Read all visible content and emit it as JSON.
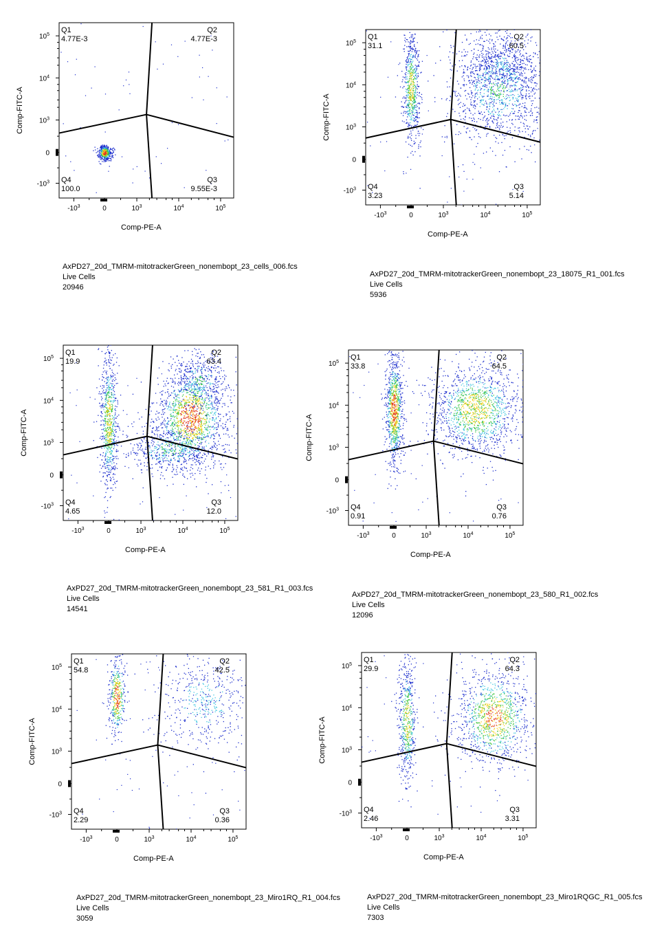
{
  "colors": {
    "density_low": "#1a2ccc",
    "density_mid": "#3fc6e0",
    "density_midhigh": "#3ec43f",
    "density_high": "#f5d21c",
    "density_peak": "#e2341d",
    "gate": "#000000"
  },
  "chart_data": [
    {
      "type": "scatter",
      "xlabel": "Comp-PE-A",
      "ylabel": "Comp-FITC-A",
      "x_ticks": [
        "-10³",
        "0",
        "10³",
        "10⁴",
        "10⁵"
      ],
      "y_ticks": [
        "-10³",
        "0",
        "10³",
        "10⁴",
        "10⁵"
      ],
      "quadrants": {
        "Q1": "4.77E-3",
        "Q2": "4.77E-3",
        "Q3": "9.55E-3",
        "Q4": "100.0"
      },
      "quadrant_names": {
        "q1": "Q1",
        "q2": "Q2",
        "q3": "Q3",
        "q4": "Q4"
      },
      "gate_center": [
        1700,
        1350
      ],
      "file": "AxPD27_20d_TMRM-mitotrackerGreen_nonembopt_23_cells_006.fcs",
      "population": "Live Cells",
      "count": "20946",
      "clusters": [
        {
          "x": 0,
          "y": 0,
          "sx": 0.02,
          "sy": 0.022,
          "n": 420,
          "d": 1.0
        }
      ]
    },
    {
      "type": "scatter",
      "xlabel": "Comp-PE-A",
      "ylabel": "Comp-FITC-A",
      "x_ticks": [
        "-10³",
        "0",
        "10³",
        "10⁴",
        "10⁵"
      ],
      "y_ticks": [
        "-10³",
        "0",
        "10³",
        "10⁴",
        "10⁵"
      ],
      "quadrants": {
        "Q1": "31.1",
        "Q2": "60.5",
        "Q3": "5.14",
        "Q4": "3.23"
      },
      "quadrant_names": {
        "q1": "Q1",
        "q2": "Q2",
        "q3": "Q3",
        "q4": "Q4"
      },
      "gate_center": [
        1500,
        1500
      ],
      "file": "AxPD27_20d_TMRM-mitotrackerGreen_nonembopt_23_18075_R1_001.fcs",
      "population": "Live Cells",
      "count": "5936",
      "clusters": [
        {
          "x": 0,
          "y": 8000,
          "sx": 0.025,
          "sy": 0.16,
          "n": 650,
          "d": 0.75
        },
        {
          "x": 20000,
          "y": 8000,
          "sx": 0.14,
          "sy": 0.16,
          "n": 1300,
          "d": 0.45
        },
        {
          "x": 25000,
          "y": 30000,
          "sx": 0.1,
          "sy": 0.08,
          "n": 400,
          "d": 0.3
        }
      ]
    },
    {
      "type": "scatter",
      "xlabel": "Comp-PE-A",
      "ylabel": "Comp-FITC-A",
      "x_ticks": [
        "-10³",
        "0",
        "10³",
        "10⁴",
        "10⁵"
      ],
      "y_ticks": [
        "-10³",
        "0",
        "10³",
        "10⁴",
        "10⁵"
      ],
      "quadrants": {
        "Q1": "19.9",
        "Q2": "63.4",
        "Q3": "12.0",
        "Q4": "4.65"
      },
      "quadrant_names": {
        "q1": "Q1",
        "q2": "Q2",
        "q3": "Q3",
        "q4": "Q4"
      },
      "gate_center": [
        1400,
        1400
      ],
      "file": "AxPD27_20d_TMRM-mitotrackerGreen_nonembopt_23_581_R1_003.fcs",
      "population": "Live Cells",
      "count": "14541",
      "clusters": [
        {
          "x": 0,
          "y": 3000,
          "sx": 0.025,
          "sy": 0.2,
          "n": 750,
          "d": 0.8
        },
        {
          "x": 15000,
          "y": 4000,
          "sx": 0.1,
          "sy": 0.14,
          "n": 1500,
          "d": 1.0
        },
        {
          "x": 5000,
          "y": 800,
          "sx": 0.13,
          "sy": 0.07,
          "n": 500,
          "d": 0.5
        },
        {
          "x": 25000,
          "y": 30000,
          "sx": 0.08,
          "sy": 0.08,
          "n": 350,
          "d": 0.45
        }
      ]
    },
    {
      "type": "scatter",
      "xlabel": "Comp-PE-A",
      "ylabel": "Comp-FITC-A",
      "x_ticks": [
        "-10³",
        "0",
        "10³",
        "10⁴",
        "10⁵"
      ],
      "y_ticks": [
        "-10³",
        "0",
        "10³",
        "10⁴",
        "10⁵"
      ],
      "quadrants": {
        "Q1": "33.8",
        "Q2": "64.5",
        "Q3": "0.76",
        "Q4": "0.91"
      },
      "quadrant_names": {
        "q1": "Q1",
        "q2": "Q2",
        "q3": "Q3",
        "q4": "Q4"
      },
      "gate_center": [
        1500,
        1400
      ],
      "file": "AxPD27_20d_TMRM-mitotrackerGreen_nonembopt_23_580_R1_002.fcs",
      "population": "Live Cells",
      "count": "12096",
      "clusters": [
        {
          "x": 0,
          "y": 8000,
          "sx": 0.025,
          "sy": 0.16,
          "n": 900,
          "d": 1.0
        },
        {
          "x": 15000,
          "y": 8000,
          "sx": 0.13,
          "sy": 0.13,
          "n": 1400,
          "d": 0.8
        }
      ]
    },
    {
      "type": "scatter",
      "xlabel": "Comp-PE-A",
      "ylabel": "Comp-FITC-A",
      "x_ticks": [
        "-10³",
        "0",
        "10³",
        "10⁴",
        "10⁵"
      ],
      "y_ticks": [
        "-10³",
        "0",
        "10³",
        "10⁴",
        "10⁵"
      ],
      "quadrants": {
        "Q1": "54.8",
        "Q2": "42.5",
        "Q3": "0.36",
        "Q4": "2.29"
      },
      "quadrant_names": {
        "q1": "Q1",
        "q2": "Q2",
        "q3": "Q3",
        "q4": "Q4"
      },
      "gate_center": [
        1600,
        1400
      ],
      "file": "AxPD27_20d_TMRM-mitotrackerGreen_nonembopt_23_Miro1RQ_R1_004.fcs",
      "population": "Live Cells",
      "count": "3059",
      "clusters": [
        {
          "x": 0,
          "y": 20000,
          "sx": 0.025,
          "sy": 0.12,
          "n": 400,
          "d": 1.0
        },
        {
          "x": 20000,
          "y": 15000,
          "sx": 0.14,
          "sy": 0.14,
          "n": 500,
          "d": 0.4
        }
      ]
    },
    {
      "type": "scatter",
      "xlabel": "Comp-PE-A",
      "ylabel": "Comp-FITC-A",
      "x_ticks": [
        "-10³",
        "0",
        "10³",
        "10⁴",
        "10⁵"
      ],
      "y_ticks": [
        "-10³",
        "0",
        "10³",
        "10⁴",
        "10⁵"
      ],
      "quadrants": {
        "Q1": "29.9",
        "Q2": "64.3",
        "Q3": "3.31",
        "Q4": "2.46"
      },
      "quadrant_names": {
        "q1": "Q1",
        "q2": "Q2",
        "q3": "Q3",
        "q4": "Q4"
      },
      "gate_center": [
        1500,
        1400
      ],
      "file": "AxPD27_20d_TMRM-mitotrackerGreen_nonembopt_23_Miro1RQGC_R1_005.fcs",
      "population": "Live Cells",
      "count": "7303",
      "clusters": [
        {
          "x": 0,
          "y": 5000,
          "sx": 0.025,
          "sy": 0.18,
          "n": 550,
          "d": 0.75
        },
        {
          "x": 20000,
          "y": 6000,
          "sx": 0.11,
          "sy": 0.14,
          "n": 1100,
          "d": 0.9
        }
      ]
    }
  ]
}
